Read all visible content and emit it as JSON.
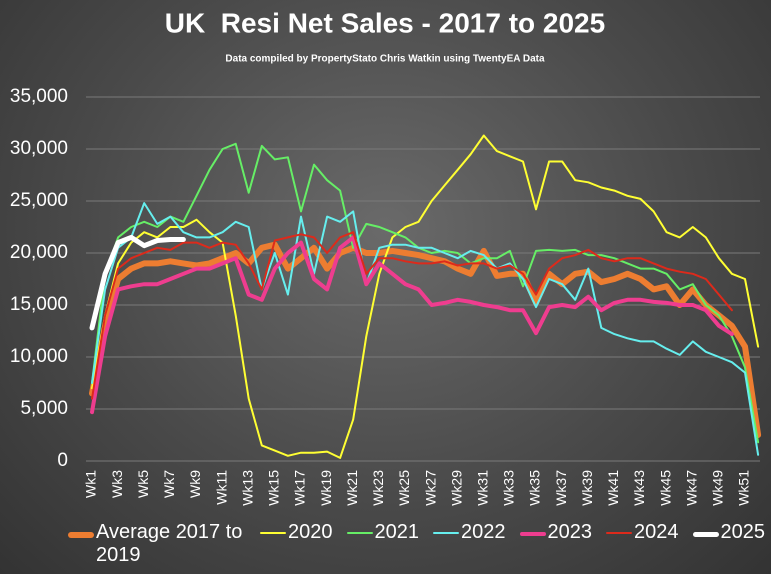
{
  "chart_data": {
    "type": "line",
    "title": "UK  Resi Net Sales - 2017 to 2025",
    "subtitle": "Data compiled by PropertyStato Chris Watkin using TwentyEA Data",
    "categories": [
      "Wk1",
      null,
      "Wk3",
      null,
      "Wk5",
      null,
      "Wk7",
      null,
      "Wk9",
      null,
      "Wk11",
      null,
      "Wk13",
      null,
      "Wk15",
      null,
      "Wk17",
      null,
      "Wk19",
      null,
      "Wk21",
      null,
      "Wk23",
      null,
      "Wk25",
      null,
      "Wk27",
      null,
      "Wk29",
      null,
      "Wk31",
      null,
      "Wk33",
      null,
      "Wk35",
      null,
      "Wk37",
      null,
      "Wk39",
      null,
      "Wk41",
      null,
      "Wk43",
      null,
      "Wk45",
      null,
      "Wk47",
      null,
      "Wk49",
      null,
      "Wk51",
      null
    ],
    "ylim": [
      0,
      35000
    ],
    "yticks": [
      0,
      {
        "value": 5000,
        "label": "5,000"
      },
      {
        "value": 10000,
        "label": "10,000"
      },
      {
        "value": 15000,
        "label": "15,000"
      },
      {
        "value": 20000,
        "label": "20,000"
      },
      {
        "value": 25000,
        "label": "25,000"
      },
      {
        "value": 30000,
        "label": "30,000"
      },
      {
        "value": 35000,
        "label": "35,000"
      }
    ],
    "grid": true,
    "legend": "bottom",
    "series": [
      {
        "name": "Average 2017 to 2019",
        "color": "#ed7d31",
        "width": 6,
        "values": [
          6500,
          13000,
          17500,
          18500,
          19000,
          19000,
          19200,
          19000,
          18800,
          19000,
          19500,
          20000,
          19000,
          20500,
          20800,
          18500,
          19500,
          20500,
          18500,
          20000,
          20500,
          20000,
          20000,
          20200,
          20000,
          19800,
          19500,
          19200,
          18500,
          18000,
          20200,
          17800,
          18000,
          18000,
          15200,
          18000,
          17000,
          18000,
          18200,
          17200,
          17500,
          18000,
          17500,
          16500,
          16800,
          15000,
          16500,
          15000,
          14000,
          13000,
          11000,
          2500
        ]
      },
      {
        "name": "2020",
        "color": "#ffff33",
        "width": 2,
        "values": [
          7000,
          14000,
          19000,
          21000,
          22000,
          21500,
          22500,
          22500,
          23200,
          22000,
          21000,
          14000,
          6000,
          1500,
          1000,
          500,
          800,
          800,
          900,
          300,
          4000,
          12000,
          18000,
          21500,
          22500,
          23000,
          25000,
          26500,
          28000,
          29500,
          31300,
          29800,
          29300,
          28800,
          24200,
          28800,
          28800,
          27000,
          26800,
          26300,
          26000,
          25500,
          25200,
          24000,
          22000,
          21500,
          22500,
          21500,
          19500,
          18000,
          17500,
          11000
        ]
      },
      {
        "name": "2021",
        "color": "#66ee66",
        "width": 2,
        "values": [
          7500,
          18000,
          21500,
          22500,
          23000,
          22500,
          23500,
          23000,
          25500,
          28000,
          30000,
          30500,
          25800,
          30300,
          29000,
          29200,
          24000,
          28500,
          27000,
          26000,
          20500,
          22800,
          22500,
          22000,
          21500,
          20500,
          20000,
          20200,
          20000,
          19000,
          19500,
          19500,
          20200,
          16800,
          20200,
          20300,
          20200,
          20300,
          19800,
          19800,
          19500,
          19000,
          18500,
          18500,
          18000,
          16500,
          17000,
          15000,
          14000,
          12000,
          9000,
          1800
        ]
      },
      {
        "name": "2022",
        "color": "#66eeee",
        "width": 2,
        "values": [
          7500,
          16500,
          20500,
          21500,
          24800,
          22800,
          23500,
          22000,
          21500,
          21500,
          22000,
          23000,
          22500,
          16500,
          20000,
          16000,
          23500,
          18000,
          23500,
          23000,
          24000,
          17000,
          20500,
          20800,
          20800,
          20500,
          20500,
          20000,
          19500,
          20200,
          19800,
          18500,
          19000,
          17500,
          14800,
          17500,
          17000,
          15500,
          18500,
          12800,
          12200,
          11800,
          11500,
          11500,
          10800,
          10200,
          11500,
          10500,
          10000,
          9500,
          8500,
          600
        ]
      },
      {
        "name": "2023",
        "color": "#ee3d8f",
        "width": 4,
        "values": [
          4700,
          12000,
          16500,
          16800,
          17000,
          17000,
          17500,
          18000,
          18500,
          18500,
          19000,
          19500,
          16000,
          15500,
          18500,
          20000,
          21000,
          17500,
          16500,
          20500,
          21500,
          17000,
          19000,
          18000,
          17000,
          16500,
          15000,
          15200,
          15500,
          15300,
          15000,
          14800,
          14500,
          14500,
          12300,
          14800,
          15000,
          14800,
          15800,
          14500,
          15200,
          15500,
          15500,
          15300,
          15200,
          15000,
          15000,
          14500,
          13000,
          12200,
          null,
          null
        ]
      },
      {
        "name": "2024",
        "color": "#dd2a1b",
        "width": 2,
        "values": [
          6000,
          14000,
          18500,
          19500,
          20000,
          20500,
          20300,
          21000,
          21000,
          20500,
          21000,
          20800,
          19000,
          16500,
          21200,
          21500,
          21800,
          21500,
          20000,
          21500,
          22000,
          18000,
          19500,
          19500,
          19200,
          19000,
          19000,
          19200,
          18800,
          19000,
          19000,
          18500,
          18800,
          18000,
          16000,
          18500,
          19500,
          19800,
          20300,
          19500,
          19200,
          19500,
          19500,
          19000,
          18500,
          18200,
          18000,
          17500,
          16000,
          14500,
          null,
          null
        ]
      },
      {
        "name": "2025",
        "color": "#ffffff",
        "width": 5,
        "values": [
          12800,
          18000,
          21000,
          21500,
          20700,
          21200,
          21300,
          21300,
          null,
          null,
          null,
          null,
          null,
          null,
          null,
          null,
          null,
          null,
          null,
          null,
          null,
          null,
          null,
          null,
          null,
          null,
          null,
          null,
          null,
          null,
          null,
          null,
          null,
          null,
          null,
          null,
          null,
          null,
          null,
          null,
          null,
          null,
          null,
          null,
          null,
          null,
          null,
          null,
          null,
          null,
          null,
          null
        ]
      }
    ]
  }
}
